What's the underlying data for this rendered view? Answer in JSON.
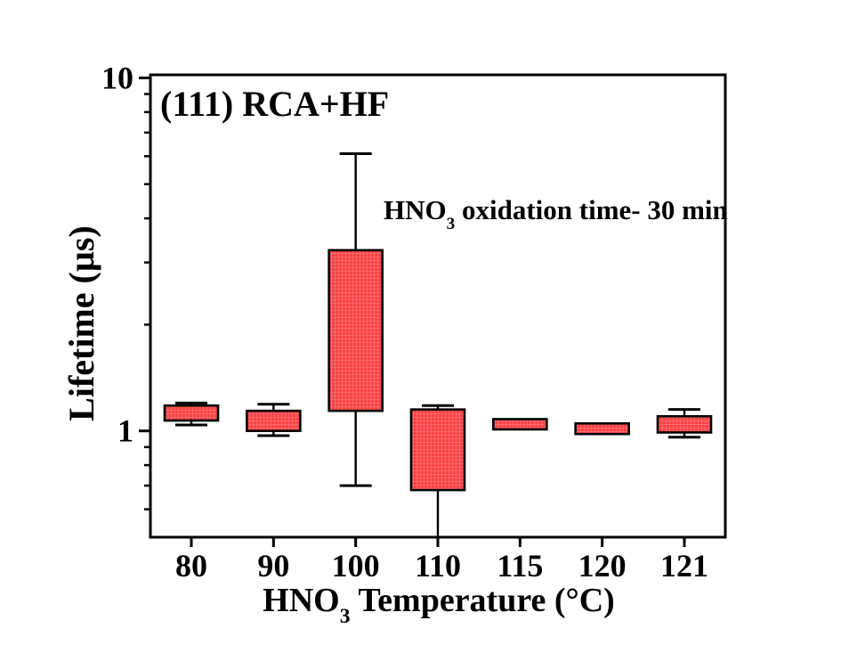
{
  "chart_data": {
    "type": "box",
    "title": "(111) RCA+HF",
    "annotation": "HNO3 oxidation time- 30 min",
    "annotation_parts": {
      "prefix": "HNO",
      "sub": "3",
      "suffix": " oxidation time- 30 min"
    },
    "xlabel": "HNO3 Temperature (°C)",
    "xlabel_parts": {
      "prefix": "HNO",
      "sub": "3",
      "suffix": " Temperature (°C)"
    },
    "ylabel": "Lifetime (µs)",
    "x_axis_title": "HNO3 Temperature (°C)",
    "y_axis_title": "Lifetime (µs)",
    "y_scale": "log",
    "ylim": [
      0.5,
      10.2
    ],
    "y_ticks_major": [
      1,
      10
    ],
    "y_tick_labels": [
      {
        "value": 1,
        "label": "1"
      },
      {
        "value": 10,
        "label": "10"
      }
    ],
    "y_ticks_minor": [
      0.6,
      0.7,
      0.8,
      0.9,
      2,
      3,
      4,
      5,
      6,
      7,
      8,
      9
    ],
    "categories": [
      "80",
      "90",
      "100",
      "110",
      "115",
      "120",
      "121"
    ],
    "boxes": [
      {
        "category": "80",
        "q1": 1.07,
        "q3": 1.18,
        "whisker_low": 1.04,
        "whisker_high": 1.2
      },
      {
        "category": "90",
        "q1": 1.0,
        "q3": 1.14,
        "whisker_low": 0.97,
        "whisker_high": 1.19
      },
      {
        "category": "100",
        "q1": 1.14,
        "q3": 3.25,
        "whisker_low": 0.7,
        "whisker_high": 6.1
      },
      {
        "category": "110",
        "q1": 0.68,
        "q3": 1.15,
        "whisker_low": 0.5,
        "whisker_high": 1.18,
        "whisker_low_clipped": true
      },
      {
        "category": "115",
        "q1": 1.01,
        "q3": 1.08
      },
      {
        "category": "120",
        "q1": 0.98,
        "q3": 1.05
      },
      {
        "category": "121",
        "q1": 0.99,
        "q3": 1.1,
        "whisker_low": 0.96,
        "whisker_high": 1.15
      }
    ],
    "legend": null,
    "grid": false,
    "colors": {
      "box_fill": "#FB4144",
      "box_fill_grid": "#FF8A8C",
      "box_edge": "#000000",
      "axis": "#000000",
      "text": "#000000",
      "background": "#FFFFFF"
    }
  }
}
